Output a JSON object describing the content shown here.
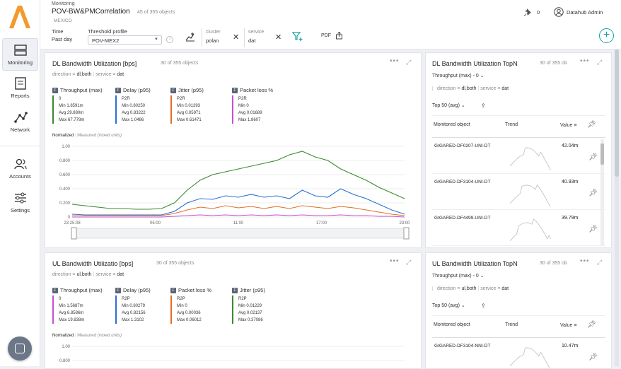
{
  "nav": [
    {
      "label": "Monitoring",
      "icon": "monitoring-icon",
      "active": true
    },
    {
      "label": "Reports",
      "icon": "reports-icon"
    },
    {
      "label": "Network",
      "icon": "network-icon"
    },
    {
      "label": "Accounts",
      "icon": "accounts-icon"
    },
    {
      "label": "Settings",
      "icon": "settings-icon"
    }
  ],
  "header": {
    "section": "Monitoring",
    "title": "POV-BW&PMCorrelation",
    "count": "45 of 355 objects",
    "region": "MEXICO",
    "time_label": "Time",
    "time_value": "Past day",
    "threshold_label": "Threshold profile",
    "threshold_value": "POV-MEX2",
    "filter_cluster_label": "cluster",
    "filter_cluster_value": "polan",
    "filter_service_label": "service",
    "filter_service_value": "dat",
    "pdf_label": "PDF",
    "pins_count": "0",
    "user": "Datahub Admin"
  },
  "dl_chart": {
    "title": "DL Bandwidth Utilization [bps]",
    "count": "30 of 355 objects",
    "direction_label": "direction",
    "direction_value": "dl,both",
    "service_label": "service",
    "service_value": "dat",
    "metrics": [
      {
        "badge": "F",
        "name": "Throughput (max)",
        "obj": "0",
        "min": "Min 1.8591m",
        "avg": "Avg 29.880m",
        "max": "Max 67.778m",
        "color": "#3a8a2e"
      },
      {
        "badge": "F",
        "name": "Delay (p95)",
        "obj": "P2R",
        "min": "Min 0.80250",
        "avg": "Avg 0.83222",
        "max": "Max 1.0486",
        "color": "#2a6fd6"
      },
      {
        "badge": "F",
        "name": "Jitter (p95)",
        "obj": "P2R",
        "min": "Min 0.01393",
        "avg": "Avg 0.05971",
        "max": "Max 0.61471",
        "color": "#e0702a"
      },
      {
        "badge": "F",
        "name": "Packet loss %",
        "obj": "P2R",
        "min": "Min 0",
        "avg": "Avg 0.01689",
        "max": "Max 1.8607",
        "color": "#c94fd0"
      }
    ],
    "mode_normalized": "Normalized",
    "mode_measured": "Measured",
    "mode_note": "(mixed units)"
  },
  "ul_chart": {
    "title": "UL Bandwidth Utilizatio [bps]",
    "count": "30 of 355 objects",
    "direction_label": "direction",
    "direction_value": "ul,both",
    "service_label": "service",
    "service_value": "dat",
    "metrics": [
      {
        "badge": "F",
        "name": "Throughput (max)",
        "obj": "0",
        "min": "Min 1.5687m",
        "avg": "Avg 6.8586m",
        "max": "Max 19.838m",
        "color": "#c94fd0"
      },
      {
        "badge": "F",
        "name": "Delay (p95)",
        "obj": "R2P",
        "min": "Min 0.80279",
        "avg": "Avg 0.82156",
        "max": "Max 1.3102",
        "color": "#2a6fd6"
      },
      {
        "badge": "F",
        "name": "Packet loss %",
        "obj": "R2P",
        "min": "Min 0",
        "avg": "Avg 0.00036",
        "max": "Max 0.06012",
        "color": "#e0702a"
      },
      {
        "badge": "F",
        "name": "Jitter (p95)",
        "obj": "R2P",
        "min": "Min 0.01229",
        "avg": "Avg 0.02137",
        "max": "Max 0.37086",
        "color": "#3a8a2e"
      }
    ],
    "mode_normalized": "Normalized",
    "mode_measured": "Measured",
    "mode_note": "(mixed units)"
  },
  "dl_top": {
    "title": "DL Bandwidth Utilization TopN",
    "count": "30 of 355 ob",
    "metric": "Throughput (max) - 0",
    "direction_label": "direction",
    "direction_value": "dl,both",
    "service_label": "service",
    "service_value": "dat",
    "top": "Top 50 (avg)",
    "col_object": "Monitored object",
    "col_trend": "Trend",
    "col_value": "Value",
    "rows": [
      {
        "name": "GIGARED-DF0207-UNI-DT",
        "value": "42.04m"
      },
      {
        "name": "GIGARED-DF3104-UNI-DT",
        "value": "40.93m"
      },
      {
        "name": "GIGARED-DF4499-UNI-DT",
        "value": "39.79m"
      }
    ]
  },
  "ul_top": {
    "title": "UL Bandwidth Utilization TopN",
    "count": "30 of 355 ob",
    "metric": "Throughput (max) - 0",
    "direction_label": "direction",
    "direction_value": "ul,both",
    "service_label": "service",
    "service_value": "dat",
    "top": "Top 50 (avg)",
    "col_object": "Monitored object",
    "col_trend": "Trend",
    "col_value": "Value",
    "rows": [
      {
        "name": "GIGARED-DF3104-NNI-DT",
        "value": "10.47m"
      }
    ]
  },
  "chart_data": [
    {
      "type": "line",
      "title": "DL Bandwidth Utilization [bps]",
      "x_ticks": [
        "23:25:08",
        "05:00",
        "11:00",
        "17:00",
        "23:00"
      ],
      "y_ticks": [
        "1.00",
        "0.800",
        "0.600",
        "0.400",
        "0.200",
        "0"
      ],
      "ylim": [
        0,
        1
      ],
      "series": [
        {
          "name": "Throughput (max)",
          "color": "#3a8a2e",
          "values": [
            0.18,
            0.16,
            0.14,
            0.12,
            0.12,
            0.11,
            0.11,
            0.12,
            0.2,
            0.38,
            0.52,
            0.6,
            0.64,
            0.68,
            0.72,
            0.76,
            0.8,
            0.88,
            0.93,
            0.85,
            0.8,
            0.68,
            0.6,
            0.52,
            0.42,
            0.34,
            0.26
          ]
        },
        {
          "name": "Delay (p95)",
          "color": "#2a6fd6",
          "values": [
            0.04,
            0.03,
            0.03,
            0.03,
            0.03,
            0.03,
            0.03,
            0.03,
            0.08,
            0.2,
            0.26,
            0.25,
            0.3,
            0.28,
            0.32,
            0.28,
            0.3,
            0.26,
            0.38,
            0.3,
            0.28,
            0.4,
            0.32,
            0.26,
            0.18,
            0.1,
            0.04
          ]
        },
        {
          "name": "Jitter (p95)",
          "color": "#e0702a",
          "values": [
            0.02,
            0.02,
            0.02,
            0.02,
            0.02,
            0.02,
            0.02,
            0.02,
            0.05,
            0.1,
            0.14,
            0.12,
            0.16,
            0.13,
            0.15,
            0.12,
            0.15,
            0.12,
            0.16,
            0.14,
            0.12,
            0.15,
            0.13,
            0.1,
            0.07,
            0.04,
            0.02
          ]
        },
        {
          "name": "Packet loss %",
          "color": "#c94fd0",
          "values": [
            0.0,
            0.0,
            0.0,
            0.0,
            0.0,
            0.0,
            0.0,
            0.0,
            0.01,
            0.02,
            0.03,
            0.02,
            0.03,
            0.02,
            0.03,
            0.02,
            0.03,
            0.02,
            0.03,
            0.02,
            0.02,
            0.03,
            0.02,
            0.02,
            0.01,
            0.01,
            0.0
          ]
        }
      ]
    },
    {
      "type": "line",
      "title": "UL Bandwidth Utilizatio [bps]",
      "y_ticks": [
        "1.00",
        "0.800"
      ],
      "ylim": [
        0,
        1
      ],
      "series": []
    }
  ]
}
